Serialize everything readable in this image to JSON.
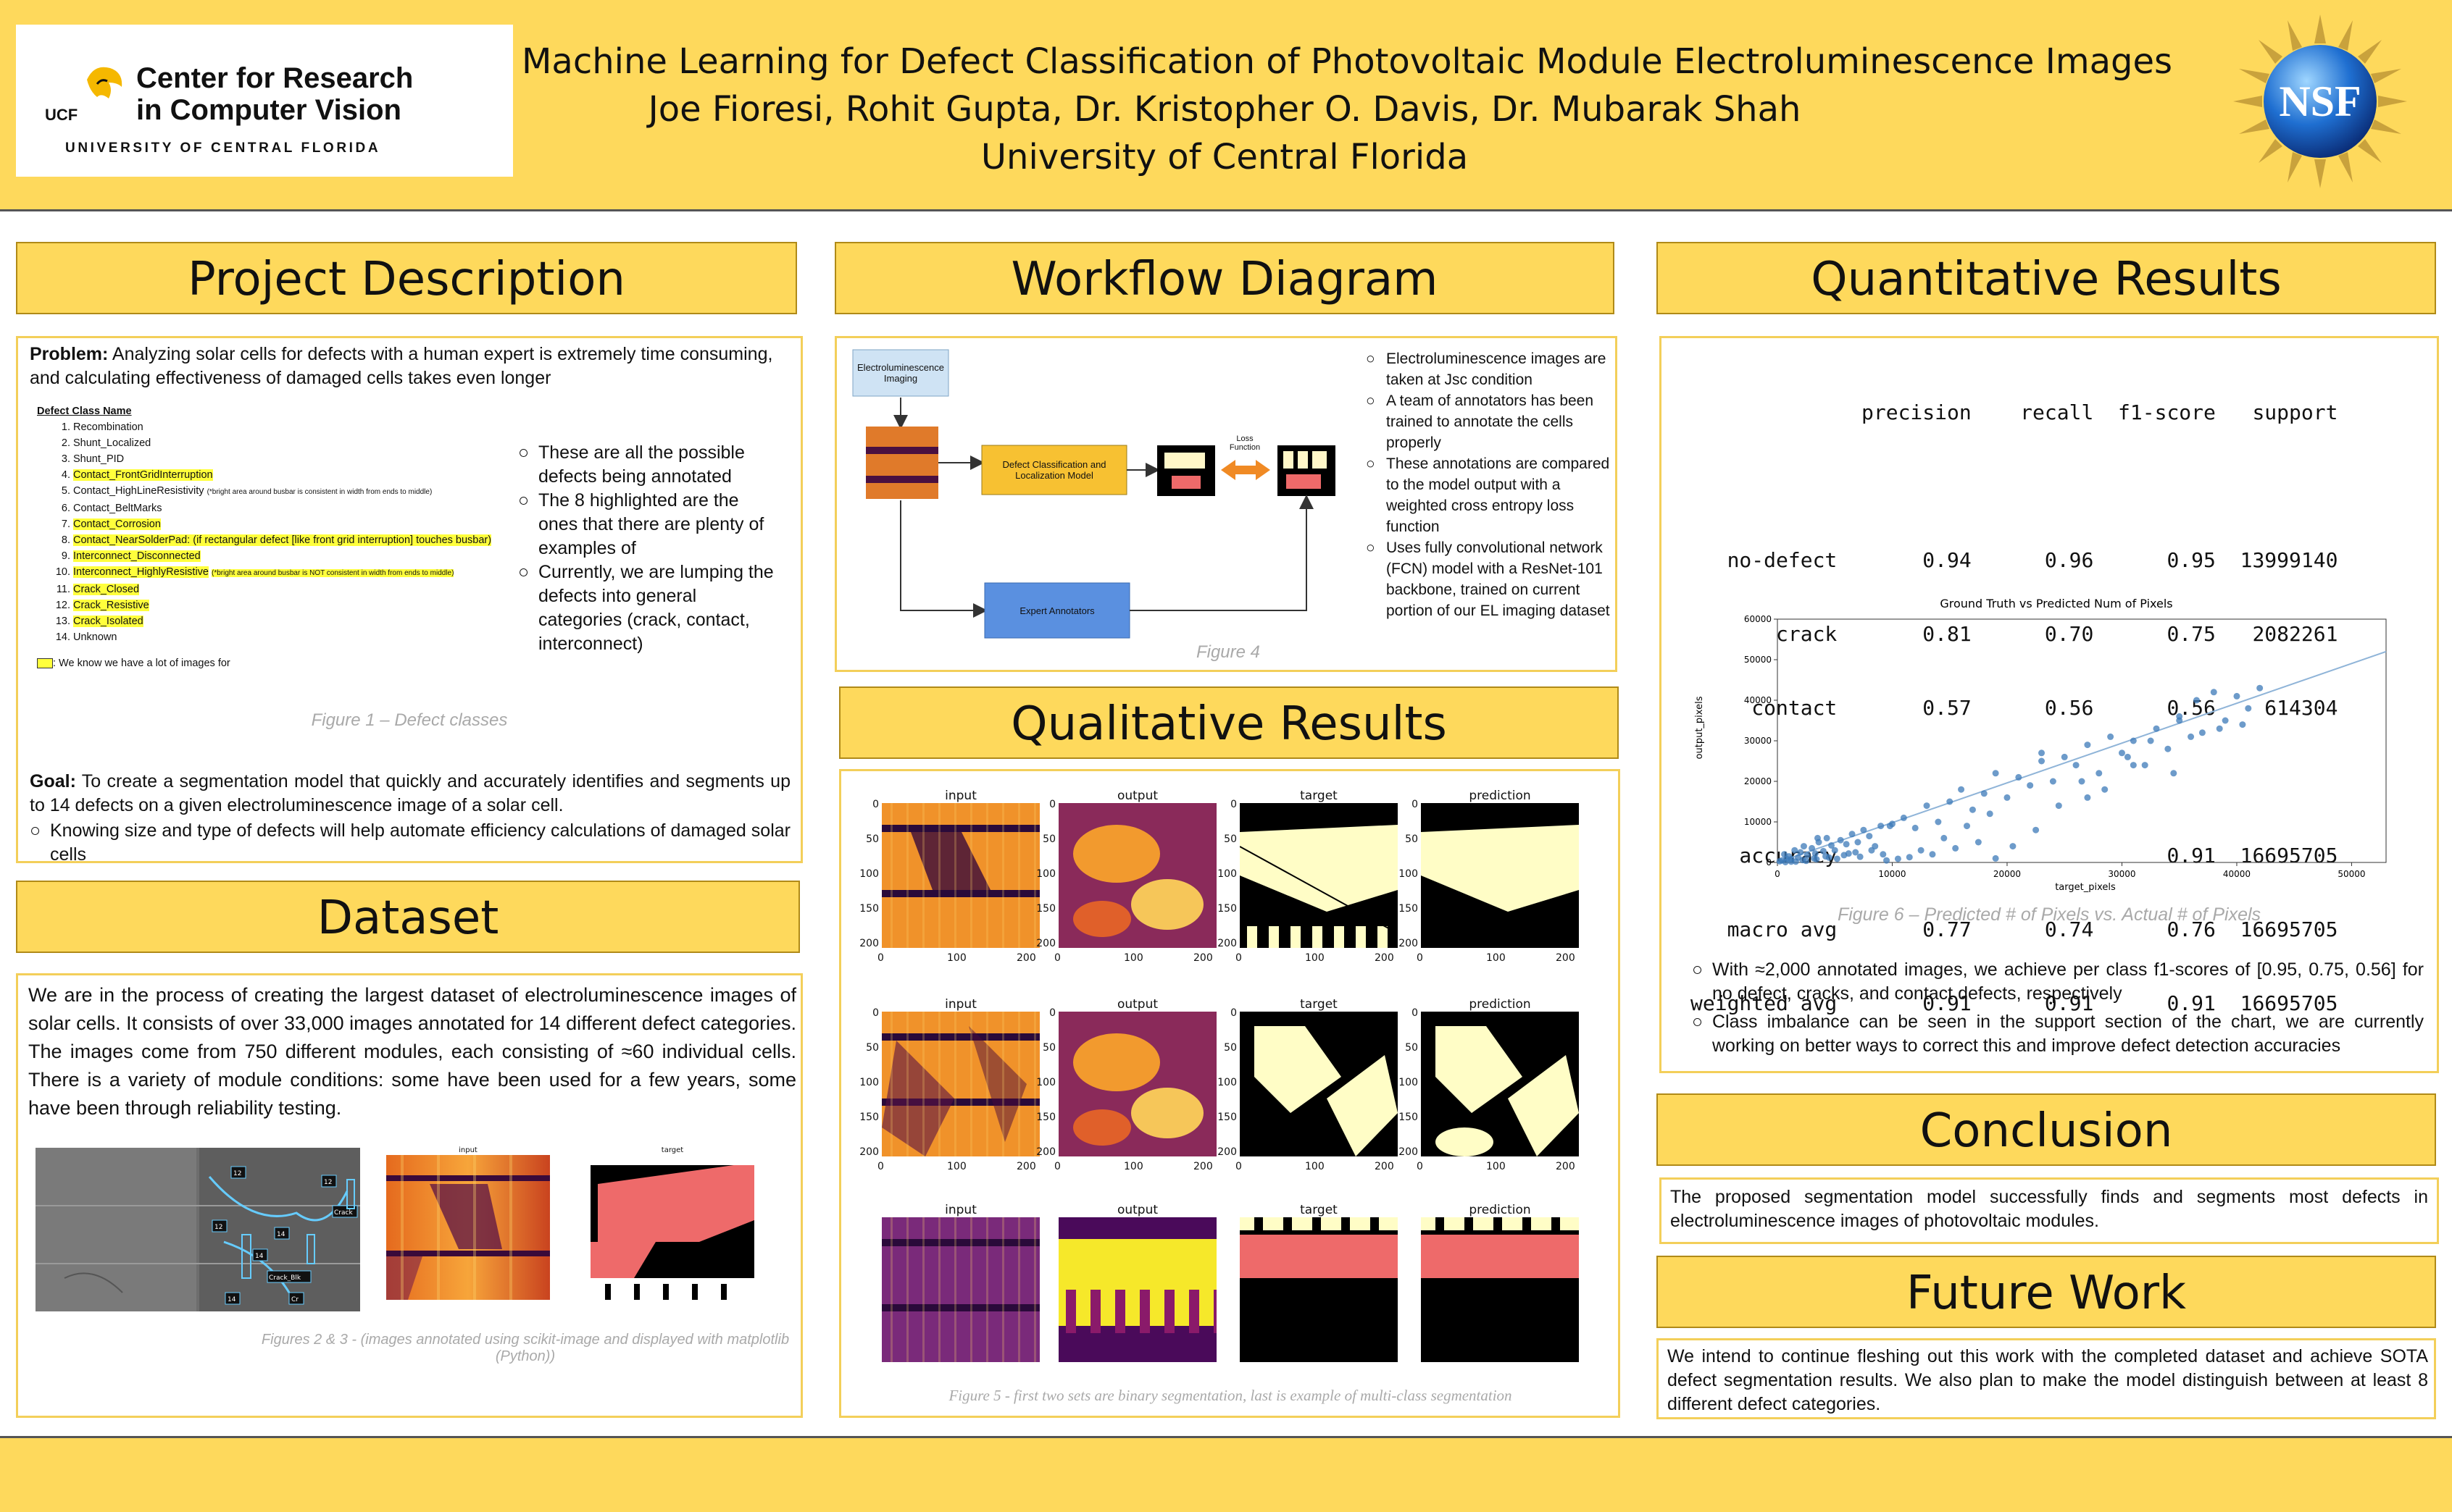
{
  "header": {
    "logo_line1": "Center for Research",
    "logo_line2": "in Computer Vision",
    "logo_line3": "UNIVERSITY OF CENTRAL FLORIDA",
    "logo_mark": "UCF",
    "title": "Machine Learning for Defect Classification of Photovoltaic Module Electroluminescence Images",
    "authors": "Joe Fioresi, Rohit Gupta, Dr. Kristopher O. Davis, Dr. Mubarak Shah",
    "affiliation": "University of Central Florida",
    "nsf_logo": "NSF"
  },
  "project": {
    "heading": "Project Description",
    "problem_label": "Problem:",
    "problem_text": " Analyzing solar cells for defects with a human expert is extremely time consuming, and calculating effectiveness of damaged cells takes even longer",
    "defect_header": "Defect Class Name",
    "defects": [
      {
        "text": "Recombination",
        "hl": false,
        "note": ""
      },
      {
        "text": "Shunt_Localized",
        "hl": false,
        "note": ""
      },
      {
        "text": "Shunt_PID",
        "hl": false,
        "note": ""
      },
      {
        "text": "Contact_FrontGridInterruption",
        "hl": true,
        "note": ""
      },
      {
        "text": "Contact_HighLineResistivity",
        "hl": false,
        "note": "(*bright area around busbar is consistent in width from ends to middle)"
      },
      {
        "text": "Contact_BeltMarks",
        "hl": false,
        "note": ""
      },
      {
        "text": "Contact_Corrosion",
        "hl": true,
        "note": ""
      },
      {
        "text": "Contact_NearSolderPad: (if rectangular defect [like front grid interruption] touches busbar)",
        "hl": true,
        "note": ""
      },
      {
        "text": "Interconnect_Disconnected",
        "hl": true,
        "note": ""
      },
      {
        "text": "Interconnect_HighlyResistive",
        "hl": true,
        "note": "(*bright area around busbar is NOT consistent in width from ends to middle)"
      },
      {
        "text": "Crack_Closed",
        "hl": true,
        "note": ""
      },
      {
        "text": "Crack_Resistive",
        "hl": true,
        "note": ""
      },
      {
        "text": "Crack_Isolated",
        "hl": true,
        "note": ""
      },
      {
        "text": "Unknown",
        "hl": false,
        "note": ""
      }
    ],
    "legend_text": ": We know we have a lot of images for",
    "bullets": [
      "These are all the possible defects being annotated",
      "The 8 highlighted are the ones that there are plenty of examples of",
      "Currently, we are lumping the defects into general categories (crack, contact, interconnect)"
    ],
    "figure_caption": "Figure 1 – Defect classes",
    "goal_label": "Goal:",
    "goal_text": " To create a segmentation model that quickly and accurately identifies and segments up to 14 defects on a given electroluminescence image of a solar cell.",
    "goal_bullet": "Knowing size and type of defects will help automate efficiency calculations of damaged solar cells"
  },
  "dataset": {
    "heading": "Dataset",
    "text": "We are in the process of creating the largest dataset of electroluminescence images of solar cells. It consists of over 33,000 images annotated for 14 different defect categories. The images come from 750 different modules, each consisting of ≈60 individual cells. There is a variety of module conditions: some have been used for a few years, some have been through reliability testing.",
    "img_label_input": "input",
    "img_label_target": "target",
    "annot_labels": [
      "12",
      "14",
      "12",
      "14",
      "Crack",
      "Crack_Blk",
      "12",
      "14",
      "Cr"
    ],
    "caption": "Figures 2 & 3 - (images annotated using scikit-image and displayed with matplotlib (Python))"
  },
  "workflow": {
    "heading": "Workflow Diagram",
    "box_el": "Electroluminescence Imaging",
    "box_model": "Defect Classification and Localization Model",
    "box_loss": "Loss Function",
    "box_experts": "Expert Annotators",
    "bullets": [
      "Electroluminescence images are taken at Jsc condition",
      "A team of annotators has been trained to annotate the cells properly",
      "These annotations are compared to the model output with a weighted cross entropy loss function",
      "Uses fully convolutional network (FCN) model with a ResNet-101 backbone, trained on current portion of our EL imaging dataset"
    ],
    "caption": "Figure 4"
  },
  "qualitative": {
    "heading": "Qualitative Results",
    "col_titles": [
      "input",
      "output",
      "target",
      "prediction"
    ],
    "y_ticks": [
      "0",
      "50",
      "100",
      "150",
      "200"
    ],
    "x_ticks": [
      "0",
      "100",
      "200"
    ],
    "caption": "Figure 5 - first two sets are binary segmentation, last is example of multi-class segmentation"
  },
  "quantitative": {
    "heading": "Quantitative Results",
    "report_header": "              precision    recall  f1-score   support",
    "report_rows": [
      "   no-defect       0.94      0.96      0.95  13999140",
      "       crack       0.81      0.70      0.75   2082261",
      "     contact       0.57      0.56      0.56    614304",
      "",
      "    accuracy                           0.91  16695705",
      "   macro avg       0.77      0.74      0.76  16695705",
      "weighted avg       0.91      0.91      0.91  16695705"
    ],
    "caption": "Figure 6 – Predicted # of Pixels vs. Actual # of Pixels",
    "bullets": [
      "With ≈2,000 annotated images, we achieve per class f1-scores of [0.95, 0.75, 0.56] for no defect, cracks, and contact defects, respectively",
      "Class imbalance can be seen in the support section of the chart, we are currently working on better ways to correct this and improve defect detection accuracies"
    ]
  },
  "chart_data": {
    "type": "scatter",
    "title": "Ground Truth vs Predicted Num of Pixels",
    "xlabel": "target_pixels",
    "ylabel": "output_pixels",
    "xlim": [
      0,
      53000
    ],
    "ylim": [
      0,
      60000
    ],
    "x_ticks": [
      0,
      10000,
      20000,
      30000,
      40000,
      50000
    ],
    "y_ticks": [
      0,
      10000,
      20000,
      30000,
      40000,
      50000,
      60000
    ],
    "fit_line": {
      "x": [
        0,
        53000
      ],
      "y": [
        0,
        52000
      ]
    },
    "series": [
      {
        "color": "#3c7ab8",
        "x": [
          200,
          400,
          600,
          800,
          1000,
          1200,
          1500,
          1800,
          2000,
          2300,
          2600,
          3000,
          3300,
          3600,
          4000,
          4300,
          4700,
          5000,
          5500,
          6000,
          6500,
          7000,
          7500,
          8000,
          8500,
          9000,
          1200,
          2200,
          3200,
          4200,
          5200,
          6200,
          7200,
          8200,
          9200,
          10000,
          11000,
          12000,
          13000,
          14000,
          15000,
          16000,
          17000,
          18000,
          19000,
          20000,
          21000,
          22000,
          23000,
          24000,
          25000,
          26000,
          27000,
          28000,
          29000,
          30000,
          31000,
          32000,
          33000,
          34000,
          35000,
          36000,
          37000,
          38000,
          39000,
          40000,
          41000,
          42000,
          12500,
          14500,
          16500,
          18500,
          20500,
          22500,
          24500,
          26500,
          28500,
          30500,
          32500,
          34500,
          36500,
          38500,
          40500,
          19000,
          23000,
          27000,
          31000,
          35000,
          700,
          1600,
          2500,
          3400,
          4500,
          5800,
          6800,
          9500,
          10500,
          11500,
          13500,
          15500,
          17500,
          9800,
          3500
        ],
        "y": [
          300,
          500,
          2000,
          900,
          1500,
          800,
          3000,
          1200,
          2500,
          4000,
          1800,
          3500,
          2200,
          5000,
          2800,
          6000,
          4200,
          3000,
          5500,
          4500,
          7000,
          5000,
          8000,
          6500,
          4000,
          9000,
          200,
          600,
          1000,
          1500,
          900,
          2200,
          1400,
          3000,
          2000,
          9500,
          11000,
          8500,
          14000,
          10000,
          15000,
          18000,
          13000,
          17000,
          22000,
          16000,
          21000,
          19000,
          25000,
          20000,
          26000,
          24000,
          29000,
          22000,
          31000,
          27000,
          30000,
          24000,
          33000,
          28000,
          36000,
          31000,
          32000,
          42000,
          35000,
          41000,
          38000,
          43000,
          3000,
          6000,
          9000,
          12000,
          4000,
          8000,
          14000,
          20000,
          18000,
          26000,
          30000,
          22000,
          40000,
          33000,
          34000,
          1000,
          27000,
          16000,
          24000,
          35000,
          100,
          200,
          400,
          800,
          1200,
          1800,
          2500,
          500,
          900,
          1300,
          2000,
          3500,
          5000,
          9000,
          6000
        ]
      }
    ]
  },
  "conclusion": {
    "heading": "Conclusion",
    "text": "The proposed segmentation model successfully finds and segments most defects in electroluminescence images of photovoltaic modules."
  },
  "future": {
    "heading": "Future Work",
    "text": "We intend to continue fleshing out this work with the completed dataset and achieve SOTA defect segmentation results. We also plan to make the model distinguish between at least 8 different defect categories."
  },
  "colors": {
    "band": "#fed95c",
    "border": "#f3cf5a",
    "highlight": "#ffff3c",
    "ucf_gold": "#f5b800"
  }
}
